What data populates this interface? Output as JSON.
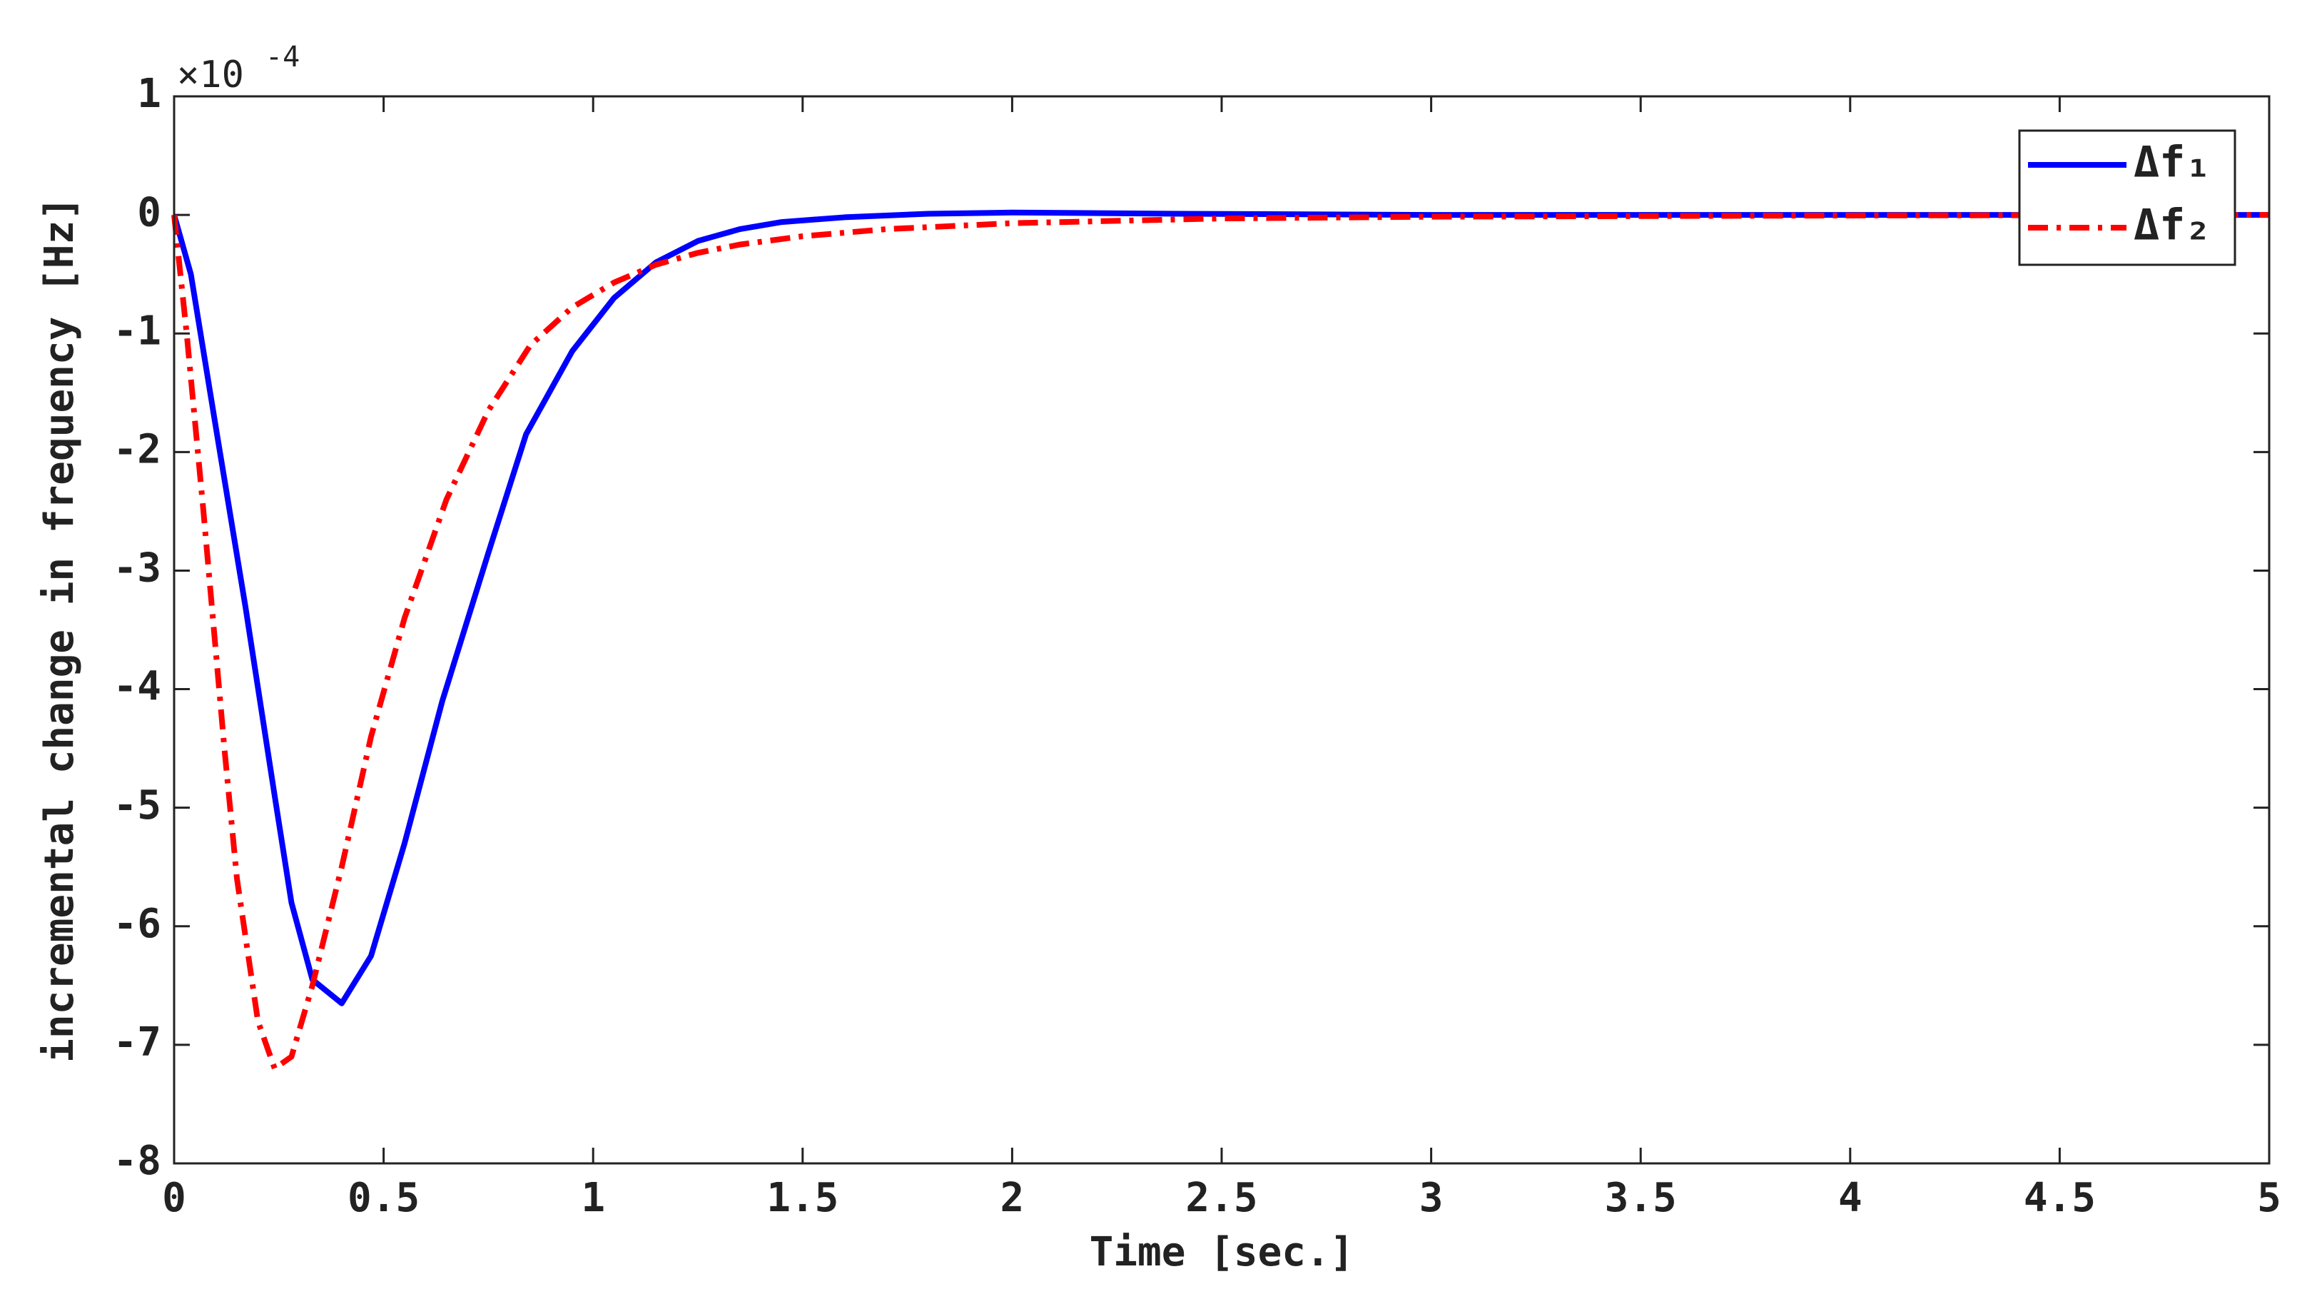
{
  "chart_data": {
    "type": "line",
    "xlabel": "Time [sec.]",
    "ylabel": "incremental change in frequency [Hz]",
    "y_multiplier": "×10",
    "y_multiplier_exponent": "-4",
    "xlim": [
      0,
      5
    ],
    "xticks": [
      0,
      0.5,
      1,
      1.5,
      2,
      2.5,
      3,
      3.5,
      4,
      4.5,
      5
    ],
    "ylim": [
      -8,
      1
    ],
    "yticks": [
      -8,
      -7,
      -6,
      -5,
      -4,
      -3,
      -2,
      -1,
      0,
      1
    ],
    "legend": "upper right",
    "series": [
      {
        "name": "Δf₁",
        "color": "#0000ff",
        "style": "solid",
        "x": [
          0,
          0.04,
          0.1,
          0.17,
          0.24,
          0.28,
          0.33,
          0.4,
          0.47,
          0.55,
          0.64,
          0.75,
          0.84,
          0.95,
          1.05,
          1.15,
          1.25,
          1.35,
          1.45,
          1.6,
          1.8,
          2.0,
          2.4,
          3,
          5
        ],
        "values": [
          0,
          -0.5,
          -1.8,
          -3.3,
          -4.9,
          -5.8,
          -6.45,
          -6.65,
          -6.25,
          -5.3,
          -4.1,
          -2.85,
          -1.85,
          -1.15,
          -0.7,
          -0.4,
          -0.22,
          -0.12,
          -0.06,
          -0.02,
          0.01,
          0.02,
          0.01,
          0,
          0
        ]
      },
      {
        "name": "Δf₂",
        "color": "#ff0000",
        "style": "dashdot",
        "x": [
          0,
          0.03,
          0.07,
          0.12,
          0.15,
          0.2,
          0.24,
          0.28,
          0.33,
          0.4,
          0.47,
          0.55,
          0.65,
          0.75,
          0.85,
          0.95,
          1.05,
          1.15,
          1.25,
          1.35,
          1.5,
          1.7,
          2.0,
          2.5,
          3,
          4,
          5
        ],
        "values": [
          0,
          -1,
          -2.5,
          -4.5,
          -5.6,
          -6.8,
          -7.2,
          -7.1,
          -6.5,
          -5.5,
          -4.4,
          -3.4,
          -2.4,
          -1.65,
          -1.1,
          -0.78,
          -0.57,
          -0.42,
          -0.32,
          -0.25,
          -0.18,
          -0.12,
          -0.07,
          -0.03,
          -0.015,
          -0.005,
          0
        ]
      }
    ]
  }
}
